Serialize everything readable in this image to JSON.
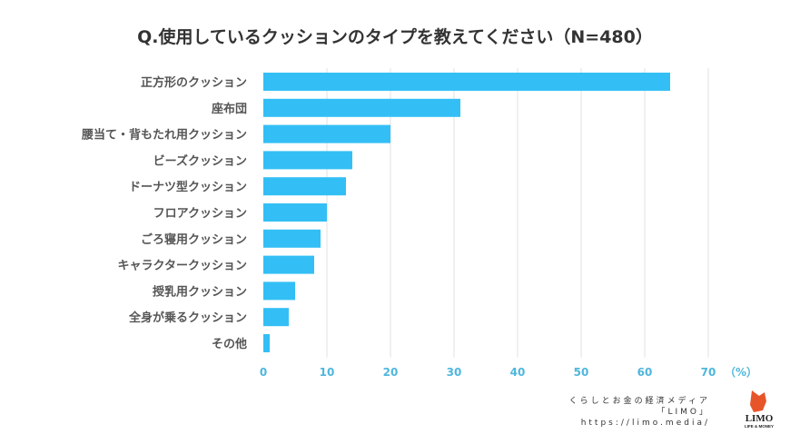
{
  "chart_data": {
    "type": "bar",
    "orientation": "horizontal",
    "title": "Q.使用しているクッションのタイプを教えてください（N=480）",
    "categories": [
      "正方形のクッション",
      "座布団",
      "腰当て・背もたれ用クッション",
      "ビーズクッション",
      "ドーナツ型クッション",
      "フロアクッション",
      "ごろ寝用クッション",
      "キャラクタークッション",
      "授乳用クッション",
      "全身が乗るクッション",
      "その他"
    ],
    "values": [
      64,
      31,
      20,
      14,
      13,
      10,
      9,
      8,
      5,
      4,
      1
    ],
    "xlim": [
      0,
      70
    ],
    "xticks": [
      0,
      10,
      20,
      30,
      40,
      50,
      60,
      70
    ],
    "xunit": "（%）",
    "grid": true,
    "bar_color": "#33bff5",
    "tick_color": "#4fb6dd"
  },
  "footer": {
    "line1": "くらしとお金の経済メディア",
    "line2": "「LIMO」",
    "line3": "https://limo.media/",
    "logo_text": "LIMO",
    "logo_sub": "LIFE & MONEY"
  }
}
